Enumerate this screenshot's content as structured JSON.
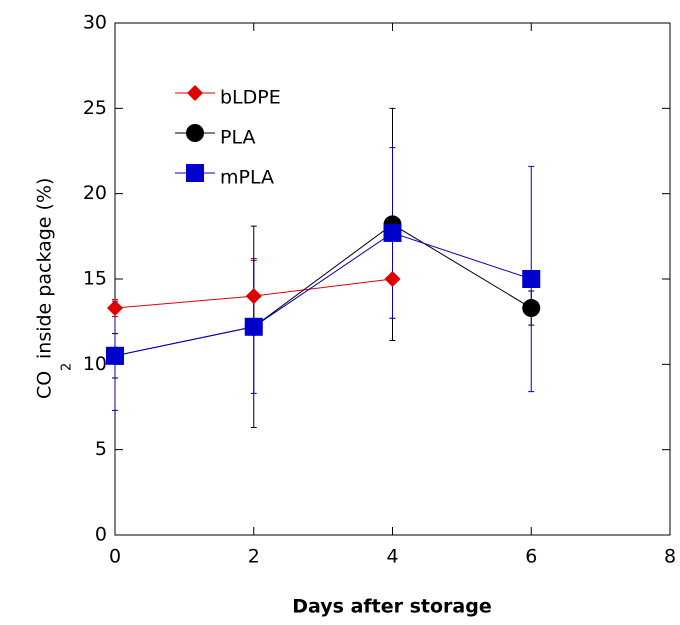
{
  "chart_data": {
    "type": "line",
    "x_label": "Days after storage",
    "y_label": {
      "main": "CO",
      "subscript": "2",
      "rest": "inside package (%)"
    },
    "x": [
      0,
      2,
      4,
      6
    ],
    "series": [
      {
        "name": "bLDPE",
        "color": "#e00000",
        "marker": "diamond",
        "values": [
          13.3,
          14.0,
          15.0,
          null
        ],
        "errors": [
          0.5,
          2.2,
          2.3,
          null
        ]
      },
      {
        "name": "PLA",
        "color": "#000000",
        "marker": "circle",
        "values": [
          10.5,
          12.2,
          18.2,
          13.3
        ],
        "errors": [
          1.3,
          5.9,
          6.8,
          1.0
        ]
      },
      {
        "name": "mPLA",
        "color": "#0000cc",
        "marker": "square",
        "values": [
          10.5,
          12.2,
          17.7,
          15.0
        ],
        "errors": [
          3.2,
          3.9,
          5.0,
          6.6
        ]
      }
    ],
    "xlim": [
      0,
      8
    ],
    "xticks": [
      0,
      2,
      4,
      6,
      8
    ],
    "ylim": [
      0,
      30
    ],
    "yticks": [
      0,
      5,
      10,
      15,
      20,
      25,
      30
    ]
  }
}
